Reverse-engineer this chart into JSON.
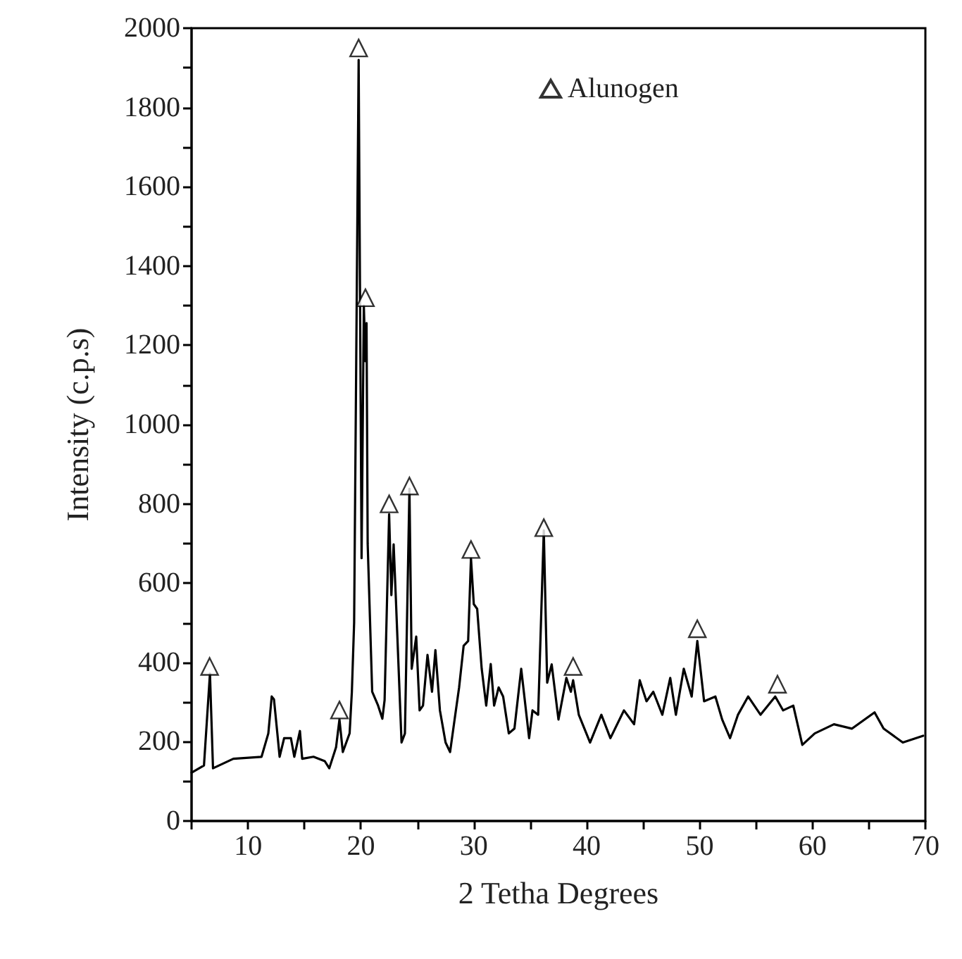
{
  "chart_data": {
    "type": "line",
    "xlabel": "2 Tetha Degrees",
    "ylabel": "Intensity (c.p.s)",
    "xlim": [
      5,
      70
    ],
    "xticks": [
      {
        "value": 5,
        "label": null
      },
      10,
      {
        "value": 15,
        "label": null
      },
      20,
      {
        "value": 25,
        "label": null
      },
      30,
      {
        "value": 35,
        "label": null
      },
      40,
      {
        "value": 45,
        "label": null
      },
      50,
      {
        "value": 55,
        "label": null
      },
      60,
      {
        "value": 65,
        "label": null
      },
      70
    ],
    "ylim": [
      0,
      2000
    ],
    "yticks": [
      0,
      {
        "value": 100,
        "label": null
      },
      200,
      {
        "value": 300,
        "label": null
      },
      400,
      {
        "value": 500,
        "label": null
      },
      600,
      {
        "value": 700,
        "label": null
      },
      800,
      {
        "value": 900,
        "label": null
      },
      1000,
      {
        "value": 1100,
        "label": null
      },
      1200,
      {
        "value": 1300,
        "label": null
      },
      1400,
      {
        "value": 1500,
        "label": null
      },
      1600,
      {
        "value": 1700,
        "label": null
      },
      1800,
      {
        "value": 1900,
        "label": null
      },
      2000
    ],
    "grid": false,
    "legend": "top right",
    "series": [
      {
        "color": "#000000",
        "marker": "none",
        "line_style": "solid",
        "x": [
          5.0,
          6.1,
          6.63,
          6.9,
          8.7,
          11.2,
          11.8,
          12.1,
          12.3,
          12.6,
          12.8,
          13.2,
          13.8,
          14.1,
          14.6,
          14.8,
          15.8,
          16.8,
          17.2,
          17.8,
          18.1,
          18.4,
          19.0,
          19.2,
          19.4,
          19.8,
          20.06,
          20.26,
          20.4,
          20.5,
          20.6,
          21.0,
          21.5,
          21.9,
          22.1,
          22.5,
          22.7,
          22.9,
          23.1,
          23.6,
          23.9,
          24.3,
          24.5,
          24.9,
          25.2,
          25.5,
          25.9,
          26.3,
          26.6,
          27.0,
          27.5,
          27.9,
          28.3,
          28.7,
          29.1,
          29.5,
          29.75,
          30.0,
          30.3,
          30.7,
          31.1,
          31.5,
          31.8,
          32.2,
          32.6,
          33.1,
          33.6,
          34.2,
          34.9,
          35.2,
          35.7,
          36.2,
          36.5,
          36.9,
          37.5,
          38.2,
          38.6,
          38.8,
          39.3,
          40.3,
          41.3,
          42.1,
          43.3,
          44.2,
          44.7,
          45.3,
          45.9,
          46.7,
          47.4,
          47.9,
          48.6,
          49.3,
          49.8,
          50.4,
          51.4,
          52.0,
          52.7,
          53.4,
          54.3,
          55.4,
          56.7,
          57.4,
          58.3,
          59.1,
          60.2,
          61.9,
          63.5,
          65.5,
          66.3,
          68.0,
          69.8
        ],
        "values": [
          122,
          140,
          372,
          133,
          157,
          162,
          221,
          314,
          307,
          221,
          162,
          209,
          209,
          162,
          227,
          157,
          162,
          151,
          133,
          186,
          256,
          174,
          221,
          326,
          500,
          1920,
          663,
          1300,
          1160,
          1256,
          700,
          326,
          293,
          258,
          305,
          774,
          570,
          698,
          559,
          198,
          221,
          838,
          384,
          465,
          279,
          291,
          419,
          326,
          431,
          279,
          198,
          174,
          256,
          337,
          442,
          454,
          663,
          547,
          535,
          384,
          291,
          396,
          291,
          337,
          314,
          221,
          233,
          384,
          209,
          279,
          268,
          733,
          349,
          395,
          256,
          361,
          326,
          355,
          268,
          198,
          268,
          209,
          279,
          244,
          355,
          302,
          326,
          268,
          361,
          268,
          384,
          314,
          454,
          302,
          314,
          256,
          209,
          268,
          314,
          268,
          314,
          279,
          291,
          192,
          221,
          244,
          233,
          274,
          233,
          198,
          215
        ]
      },
      {
        "type": "scatter",
        "name": "Alunogen",
        "color": "#000000",
        "marker": "triangle",
        "x": [
          6.6,
          18.1,
          19.8,
          20.4,
          22.5,
          24.3,
          29.75,
          36.2,
          38.8,
          49.8,
          56.9
        ],
        "values": [
          390,
          280,
          1950,
          1320,
          800,
          845,
          685,
          740,
          390,
          485,
          345
        ]
      }
    ]
  }
}
